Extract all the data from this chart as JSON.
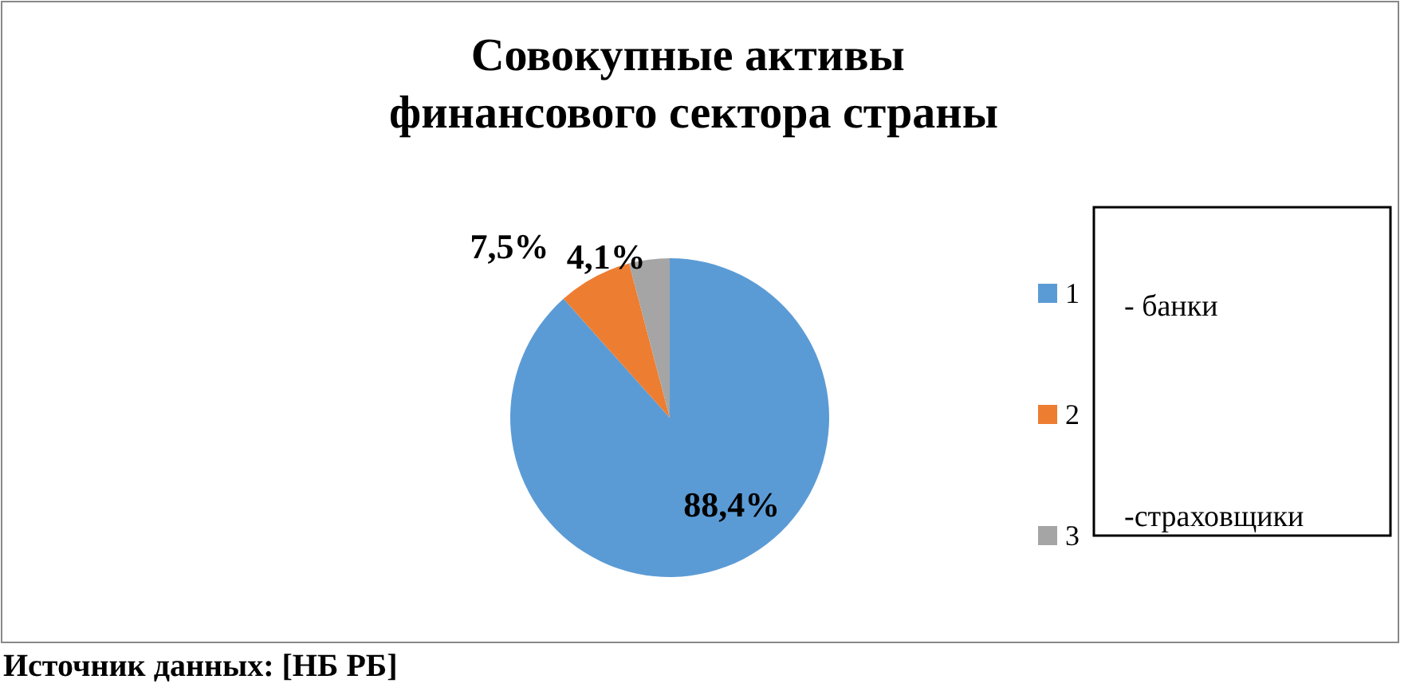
{
  "chart_data": {
    "type": "pie",
    "title": "Совокупные активы финансового сектора страны",
    "categories": [
      "1",
      "2",
      "3"
    ],
    "values": [
      88.4,
      7.5,
      4.1
    ],
    "colors": [
      "#5b9bd5",
      "#ed7d31",
      "#a5a5a5"
    ],
    "value_labels": [
      "88,4%",
      "7,5%",
      "4,1%"
    ],
    "legend": "right",
    "annotations": [
      "- банки",
      "-страховщики",
      "Источник данных: [НБ РБ]"
    ]
  }
}
